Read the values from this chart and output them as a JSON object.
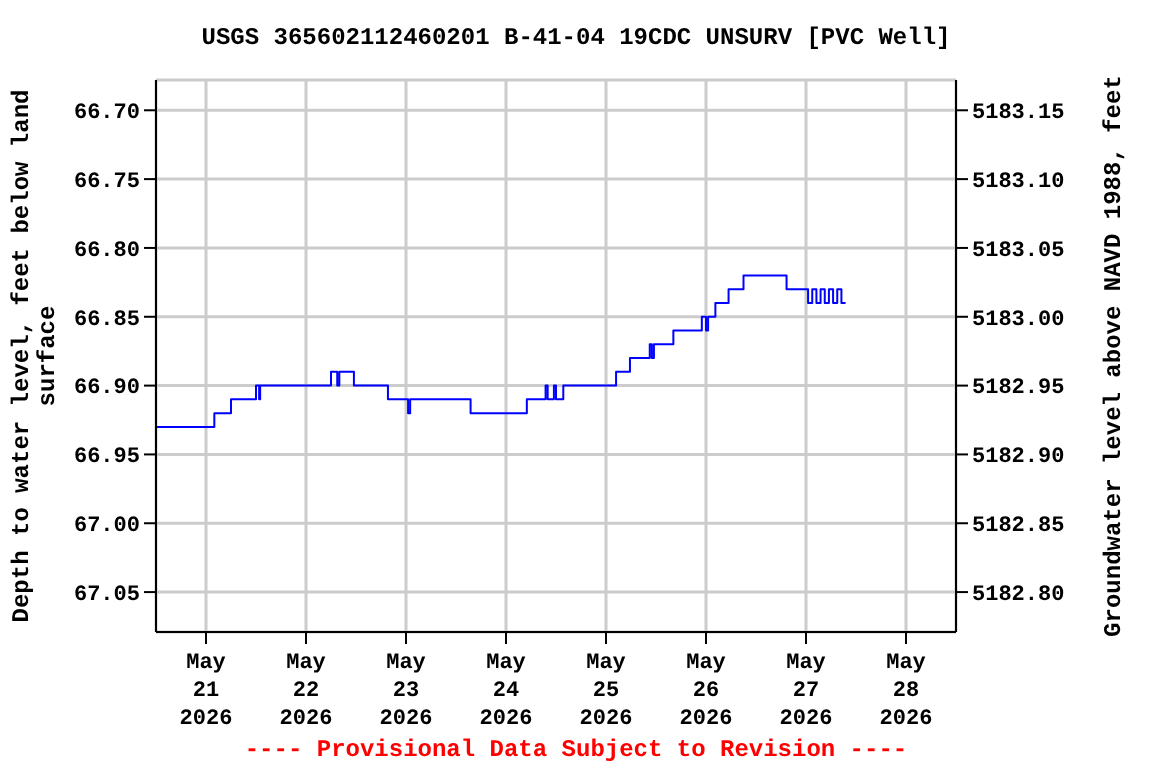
{
  "chart_data": {
    "type": "step",
    "title": "USGS 365602112460201 B-41-04 19CDC UNSURV [PVC Well]",
    "xlabel": null,
    "ylabel": "Depth to water level, feet below land surface",
    "y2label": "Groundwater level above NAVD 1988, feet",
    "annotations": [
      "---- Provisional Data Subject to Revision ----"
    ],
    "series": [
      {
        "color": "#0000ff",
        "x": [
          "2026-05-20T12:00",
          "2026-05-21T02:00",
          "2026-05-21T06:00",
          "2026-05-21T12:00",
          "2026-05-21T12:45",
          "2026-05-21T13:00",
          "2026-05-22T06:00",
          "2026-05-22T07:30",
          "2026-05-22T08:00",
          "2026-05-22T11:30",
          "2026-05-22T19:40",
          "2026-05-23T00:30",
          "2026-05-23T01:00",
          "2026-05-23T15:30",
          "2026-05-24T05:00",
          "2026-05-24T09:30",
          "2026-05-24T10:00",
          "2026-05-24T11:30",
          "2026-05-24T12:00",
          "2026-05-24T13:45",
          "2026-05-25T02:25",
          "2026-05-25T05:45",
          "2026-05-25T10:30",
          "2026-05-25T11:00",
          "2026-05-25T11:30",
          "2026-05-25T16:10",
          "2026-05-25T23:00",
          "2026-05-26T00:00",
          "2026-05-26T00:30",
          "2026-05-26T02:15",
          "2026-05-26T05:25",
          "2026-05-26T09:00",
          "2026-05-26T19:20",
          "2026-05-27T00:30",
          "2026-05-27T01:30",
          "2026-05-27T02:30",
          "2026-05-27T03:30",
          "2026-05-27T04:30",
          "2026-05-27T05:30",
          "2026-05-27T06:30",
          "2026-05-27T07:30",
          "2026-05-27T08:30",
          "2026-05-27T09:30"
        ],
        "values": [
          66.93,
          66.92,
          66.91,
          66.9,
          66.91,
          66.9,
          66.89,
          66.9,
          66.89,
          66.9,
          66.91,
          66.92,
          66.91,
          66.92,
          66.91,
          66.9,
          66.91,
          66.9,
          66.91,
          66.9,
          66.89,
          66.88,
          66.87,
          66.88,
          66.87,
          66.86,
          66.85,
          66.86,
          66.85,
          66.84,
          66.83,
          66.82,
          66.83,
          66.84,
          66.83,
          66.84,
          66.83,
          66.84,
          66.83,
          66.84,
          66.83,
          66.84,
          66.84
        ]
      }
    ],
    "xlim": [
      "2026-05-20T12:00",
      "2026-05-28T12:00"
    ],
    "xticks": [
      {
        "value": "2026-05-21",
        "label": "May 21 2026"
      },
      {
        "value": "2026-05-22",
        "label": "May 22 2026"
      },
      {
        "value": "2026-05-23",
        "label": "May 23 2026"
      },
      {
        "value": "2026-05-24",
        "label": "May 24 2026"
      },
      {
        "value": "2026-05-25",
        "label": "May 25 2026"
      },
      {
        "value": "2026-05-26",
        "label": "May 26 2026"
      },
      {
        "value": "2026-05-27",
        "label": "May 27 2026"
      },
      {
        "value": "2026-05-28",
        "label": "May 28 2026"
      }
    ],
    "ylim": [
      67.079,
      66.678
    ],
    "yticks": [
      {
        "value": 66.7,
        "label": "66.70"
      },
      {
        "value": 66.75,
        "label": "66.75"
      },
      {
        "value": 66.8,
        "label": "66.80"
      },
      {
        "value": 66.85,
        "label": "66.85"
      },
      {
        "value": 66.9,
        "label": "66.90"
      },
      {
        "value": 66.95,
        "label": "66.95"
      },
      {
        "value": 67.0,
        "label": "67.00"
      },
      {
        "value": 67.05,
        "label": "67.05"
      }
    ],
    "y2lim": [
      5182.771,
      5183.172
    ],
    "y2ticks": [
      {
        "value": 5182.8,
        "label": "5182.80"
      },
      {
        "value": 5182.85,
        "label": "5182.85"
      },
      {
        "value": 5182.9,
        "label": "5182.90"
      },
      {
        "value": 5182.95,
        "label": "5182.95"
      },
      {
        "value": 5183.0,
        "label": "5183.00"
      },
      {
        "value": 5183.05,
        "label": "5183.05"
      },
      {
        "value": 5183.1,
        "label": "5183.10"
      },
      {
        "value": 5183.15,
        "label": "5183.15"
      }
    ],
    "grid": true,
    "line_style": "solid",
    "marker": "none"
  }
}
